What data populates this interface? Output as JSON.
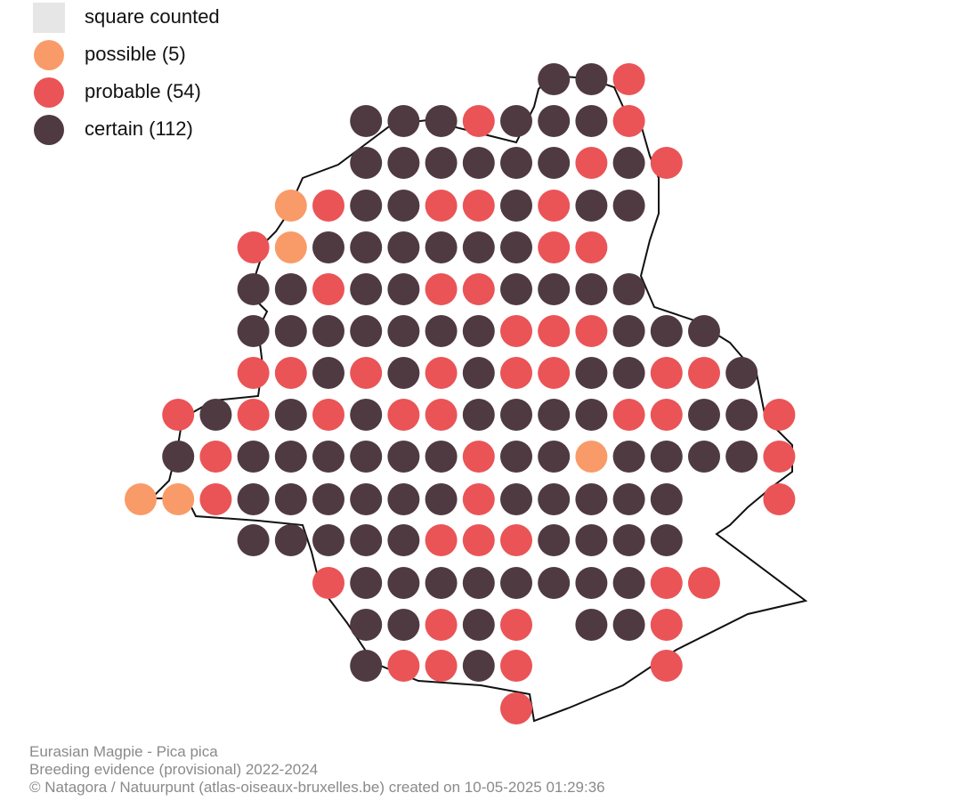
{
  "legend": [
    {
      "label": "square counted",
      "color": "#e6e6e6"
    },
    {
      "label": "possible (5)",
      "color": "#f99b68"
    },
    {
      "label": "probable (54)",
      "color": "#ea5457"
    },
    {
      "label": "certain (112)",
      "color": "#4f3a42"
    }
  ],
  "footer": [
    "Eurasian Magpie - Pica pica",
    "Breeding evidence (provisional) 2022-2024",
    "© Natagora / Natuurpunt (atlas-oiseaux-bruxelles.be) created on 10-05-2025 01:29:36"
  ]
}
